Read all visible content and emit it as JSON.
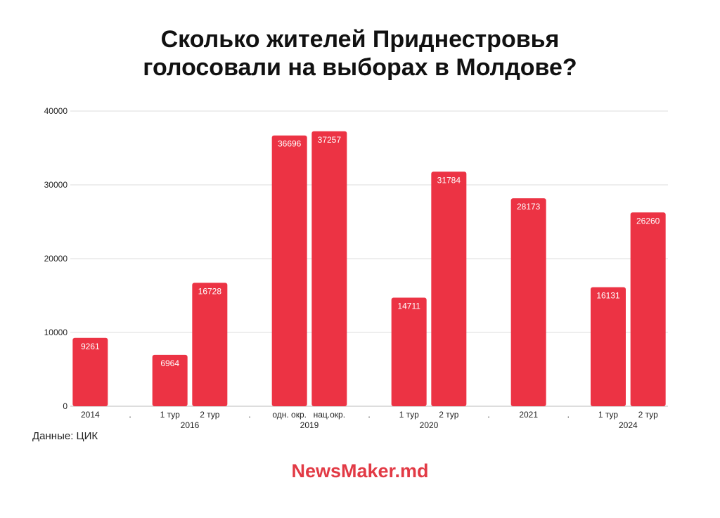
{
  "title_lines": [
    "Сколько жителей Приднестровья",
    "голосовали на выборах в Молдове?"
  ],
  "source": "Данные: ЦИК",
  "brand": "NewsMaker.md",
  "colors": {
    "bar": "#ec3344",
    "brand": "#e23a45",
    "grid": "#dddddd",
    "text": "#222222",
    "label": "#ffffff"
  },
  "chart_data": {
    "type": "bar",
    "title": "Сколько жителей Приднестровья голосовали на выборах в Молдове?",
    "ylim": [
      0,
      40000
    ],
    "yticks": [
      0,
      10000,
      20000,
      30000,
      40000
    ],
    "grid": true,
    "categories": [
      "2014",
      ".",
      "1 тур",
      "2 тур",
      ".",
      "одн. окр.",
      "нац.окр.",
      ".",
      "1 тур",
      "2 тур",
      ".",
      "2021",
      ".",
      "1 тур",
      "2 тур"
    ],
    "values": [
      9261,
      null,
      6964,
      16728,
      null,
      36696,
      37257,
      null,
      14711,
      31784,
      null,
      28173,
      null,
      16131,
      26260
    ],
    "groups": [
      {
        "label": "2016",
        "from": 2,
        "to": 3
      },
      {
        "label": "2019",
        "from": 5,
        "to": 6
      },
      {
        "label": "2020",
        "from": 8,
        "to": 9
      },
      {
        "label": "2024",
        "from": 13,
        "to": 14
      }
    ],
    "data_labels": true
  }
}
